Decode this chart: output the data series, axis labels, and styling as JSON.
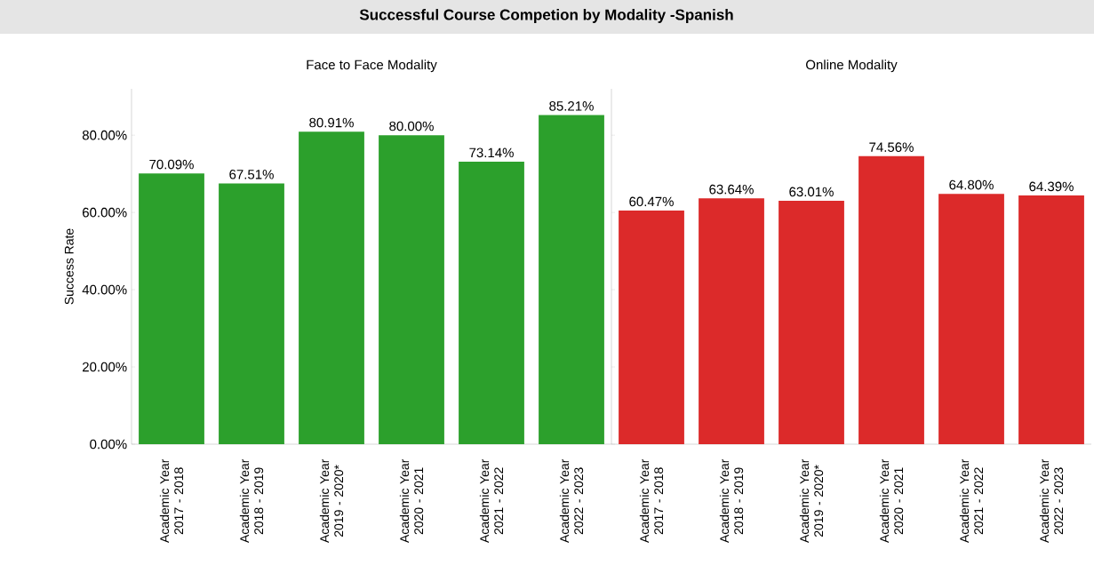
{
  "chart_data": [
    {
      "type": "bar",
      "title": "Successful Course Competion by Modality -Spanish",
      "subtitle": "Face to Face Modality",
      "ylabel": "Success Rate",
      "categories": [
        "Academic Year 2017 - 2018",
        "Academic Year 2018 - 2019",
        "Academic Year 2019 - 2020*",
        "Academic Year 2020 - 2021",
        "Academic Year 2021 - 2022",
        "Academic Year 2022 - 2023"
      ],
      "values": [
        70.09,
        67.51,
        80.91,
        80.0,
        73.14,
        85.21
      ],
      "value_labels": [
        "70.09%",
        "67.51%",
        "80.91%",
        "80.00%",
        "73.14%",
        "85.21%"
      ],
      "color": "#2ca02c",
      "ylim": [
        0,
        92
      ],
      "yticks": [
        {
          "value": 0,
          "label": "0.00%"
        },
        {
          "value": 20,
          "label": "20.00%"
        },
        {
          "value": 40,
          "label": "40.00%"
        },
        {
          "value": 60,
          "label": "60.00%"
        },
        {
          "value": 80,
          "label": "80.00%"
        }
      ]
    },
    {
      "type": "bar",
      "subtitle": "Online Modality",
      "categories": [
        "Academic Year 2017 - 2018",
        "Academic Year 2018 - 2019",
        "Academic Year 2019 - 2020*",
        "Academic Year 2020 - 2021",
        "Academic Year 2021 - 2022",
        "Academic Year 2022 - 2023"
      ],
      "values": [
        60.47,
        63.64,
        63.01,
        74.56,
        64.8,
        64.39
      ],
      "value_labels": [
        "60.47%",
        "63.64%",
        "63.01%",
        "74.56%",
        "64.80%",
        "64.39%"
      ],
      "color": "#dc2a2a",
      "ylim": [
        0,
        92
      ],
      "yticks": [
        {
          "value": 0,
          "label": null
        },
        {
          "value": 20,
          "label": null
        },
        {
          "value": 40,
          "label": null
        },
        {
          "value": 60,
          "label": null
        },
        {
          "value": 80,
          "label": null
        }
      ],
      "tick_labels": "x"
    }
  ]
}
